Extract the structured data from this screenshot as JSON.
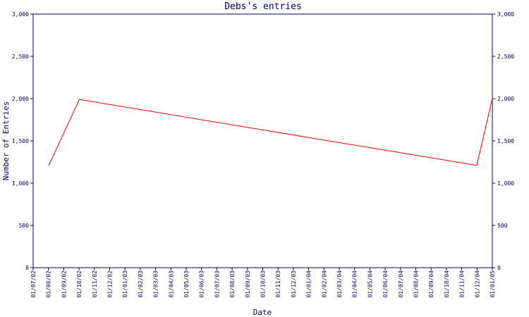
{
  "chart_data": {
    "type": "line",
    "title": "Debs's entries",
    "xlabel": "Date",
    "ylabel": "Number of Entries",
    "x_ticks": [
      "01/07/02",
      "01/08/02",
      "01/09/02",
      "01/10/02",
      "01/11/02",
      "01/12/02",
      "01/01/03",
      "01/02/03",
      "01/03/03",
      "01/04/03",
      "01/05/03",
      "01/06/03",
      "01/07/03",
      "01/08/03",
      "01/09/03",
      "01/10/03",
      "01/11/03",
      "01/12/03",
      "01/01/04",
      "01/02/04",
      "01/03/04",
      "01/04/04",
      "01/05/04",
      "01/06/04",
      "01/07/04",
      "01/08/04",
      "01/09/04",
      "01/10/04",
      "01/11/04",
      "01/12/04",
      "01/01/05"
    ],
    "y_ticks": [
      "0",
      "500",
      "1,000",
      "1,500",
      "2,000",
      "2,500",
      "3,000"
    ],
    "ylim": [
      0,
      3000
    ],
    "xlim": [
      "2002-07-01",
      "2005-01-01"
    ],
    "series": [
      {
        "color": "#ff0000",
        "points": [
          {
            "x": "2002-08-01",
            "y": 1210
          },
          {
            "x": "2002-10-01",
            "y": 1990
          },
          {
            "x": "2004-12-01",
            "y": 1210
          },
          {
            "x": "2005-01-01",
            "y": 2000
          }
        ]
      }
    ],
    "axis_color": "#00006a",
    "grid": false,
    "right_axis": true
  }
}
